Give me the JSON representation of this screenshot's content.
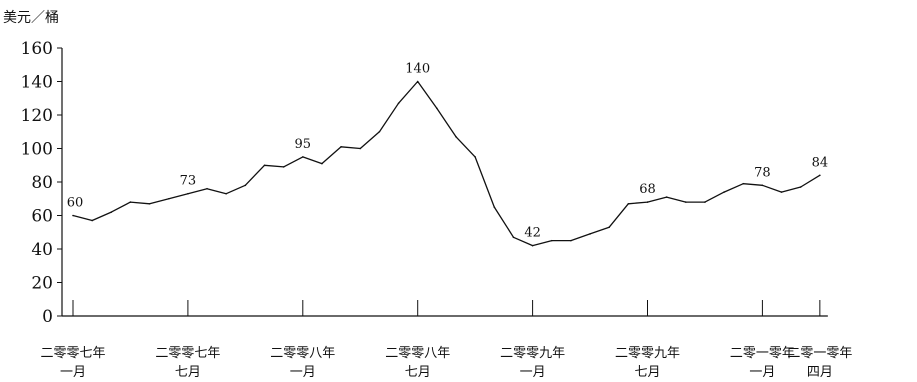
{
  "chart_data": {
    "type": "line",
    "title": "",
    "ylabel": "美元／桶",
    "xlabel": "",
    "ylim": [
      0,
      160
    ],
    "yticks": [
      0,
      20,
      40,
      60,
      80,
      100,
      120,
      140,
      160
    ],
    "grid": false,
    "xticks": [
      {
        "index": 0,
        "line1": "二零零七年",
        "line2": "一月"
      },
      {
        "index": 6,
        "line1": "二零零七年",
        "line2": "七月"
      },
      {
        "index": 12,
        "line1": "二零零八年",
        "line2": "一月"
      },
      {
        "index": 18,
        "line1": "二零零八年",
        "line2": "七月"
      },
      {
        "index": 24,
        "line1": "二零零九年",
        "line2": "一月"
      },
      {
        "index": 30,
        "line1": "二零零九年",
        "line2": "七月"
      },
      {
        "index": 36,
        "line1": "二零一零年",
        "line2": "一月"
      },
      {
        "index": 39,
        "line1": "二零一零年",
        "line2": "四月"
      }
    ],
    "series": [
      {
        "values": [
          60,
          57,
          62,
          68,
          67,
          70,
          73,
          76,
          73,
          78,
          90,
          89,
          95,
          91,
          101,
          100,
          110,
          127,
          140,
          124,
          107,
          95,
          65,
          47,
          42,
          45,
          45,
          49,
          53,
          67,
          68,
          71,
          68,
          68,
          74,
          79,
          78,
          74,
          77,
          84
        ]
      }
    ],
    "data_labels": [
      {
        "index": 0,
        "text": "60"
      },
      {
        "index": 6,
        "text": "73"
      },
      {
        "index": 12,
        "text": "95"
      },
      {
        "index": 18,
        "text": "140"
      },
      {
        "index": 24,
        "text": "42"
      },
      {
        "index": 30,
        "text": "68"
      },
      {
        "index": 36,
        "text": "78"
      },
      {
        "index": 39,
        "text": "84"
      }
    ]
  }
}
